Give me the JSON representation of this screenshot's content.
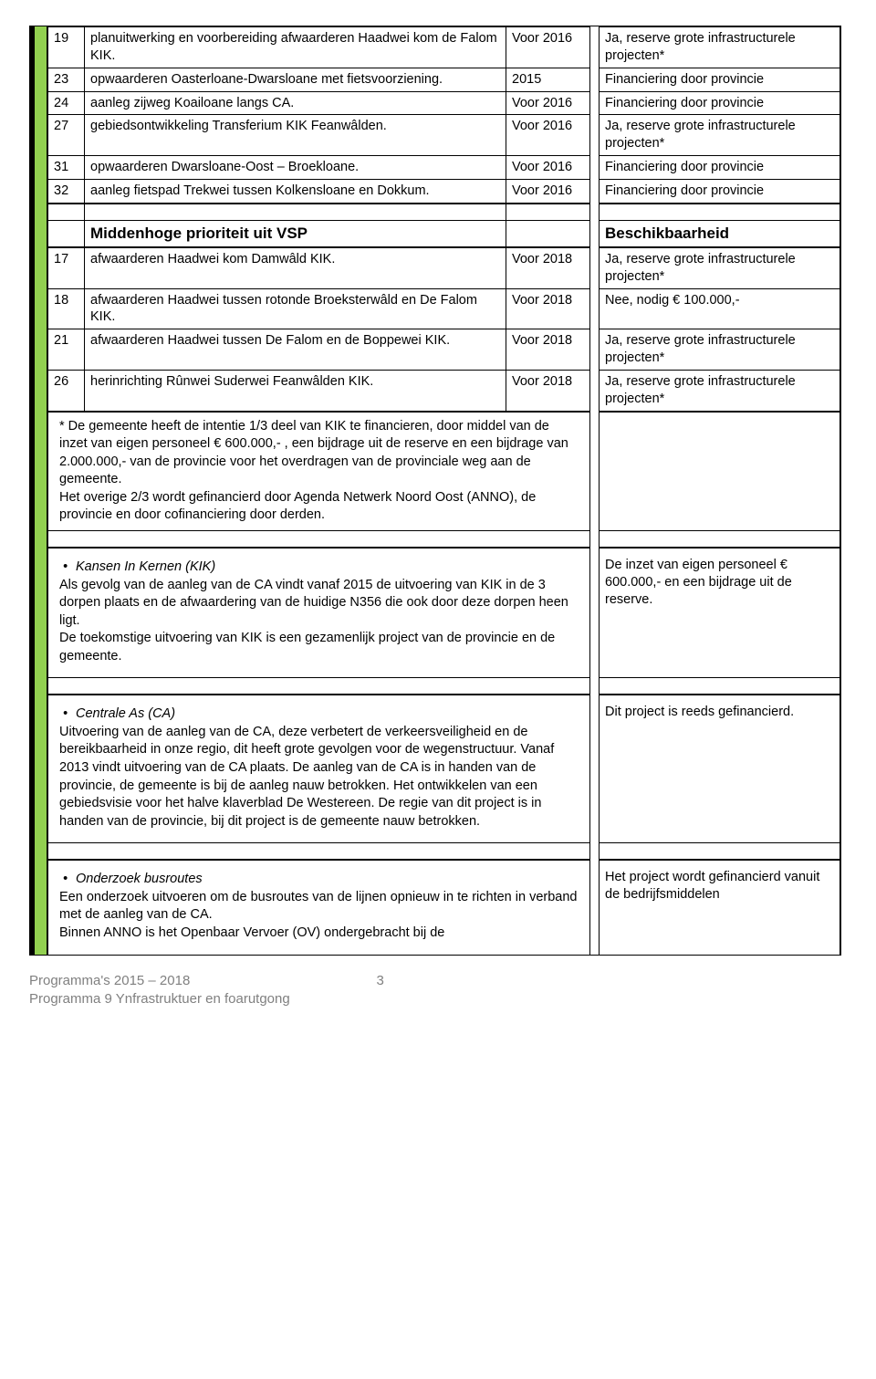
{
  "table1": {
    "rows": [
      {
        "num": "19",
        "desc": "planuitwerking en voorbereiding afwaarderen Haadwei kom de Falom KIK.",
        "year": "Voor 2016",
        "status": "Ja, reserve grote infrastructurele projecten*"
      },
      {
        "num": "23",
        "desc": "opwaarderen Oasterloane-Dwarsloane met fietsvoorziening.",
        "year": "2015",
        "status": "Financiering door provincie"
      },
      {
        "num": "24",
        "desc": "aanleg zijweg Koailoane langs CA.",
        "year": "Voor 2016",
        "status": "Financiering door provincie"
      },
      {
        "num": "27",
        "desc": "gebiedsontwikkeling Transferium KIK Feanwâlden.",
        "year": "Voor 2016",
        "status": "Ja, reserve grote infrastructurele projecten*"
      },
      {
        "num": "31",
        "desc": "opwaarderen Dwarsloane-Oost – Broekloane.",
        "year": "Voor 2016",
        "status": "Financiering door provincie"
      },
      {
        "num": "32",
        "desc": "aanleg fietspad Trekwei tussen Kolkensloane en Dokkum.",
        "year": "Voor 2016",
        "status": "Financiering door provincie"
      }
    ]
  },
  "section2": {
    "left": "Middenhoge prioriteit uit VSP",
    "right": "Beschikbaarheid"
  },
  "table2": {
    "rows": [
      {
        "num": "17",
        "desc": "afwaarderen Haadwei kom Damwâld KIK.",
        "year": "Voor 2018",
        "status": "Ja, reserve grote infrastructurele projecten*"
      },
      {
        "num": "18",
        "desc": "afwaarderen Haadwei tussen rotonde Broeksterwâld en De Falom KIK.",
        "year": "Voor 2018",
        "status": "Nee, nodig € 100.000,-"
      },
      {
        "num": "21",
        "desc": "afwaarderen Haadwei tussen De Falom en de Boppewei KIK.",
        "year": "Voor 2018",
        "status": "Ja, reserve grote infrastructurele projecten*"
      },
      {
        "num": "26",
        "desc": "herinrichting Rûnwei Suderwei Feanwâlden KIK.",
        "year": "Voor 2018",
        "status": "Ja, reserve grote infrastructurele projecten*"
      }
    ]
  },
  "note": "* De gemeente heeft de intentie 1/3 deel van KIK te financieren, door middel van de inzet van eigen personeel € 600.000,- , een bijdrage uit de reserve en een bijdrage van 2.000.000,- van de provincie voor het overdragen van de provinciale weg aan de gemeente.\nHet overige 2/3 wordt gefinancierd door Agenda Netwerk Noord Oost (ANNO), de provincie en door cofinanciering door derden.",
  "blocks": [
    {
      "title": "Kansen In Kernen (KIK)",
      "body": "Als gevolg van de aanleg van de CA vindt vanaf 2015 de uitvoering van KIK in de 3 dorpen plaats en de afwaardering van de huidige N356 die ook door deze dorpen heen ligt.\nDe toekomstige uitvoering van KIK is een gezamenlijk project van de provincie en de gemeente.",
      "right": "De inzet van eigen personeel € 600.000,- en een bijdrage uit de reserve."
    },
    {
      "title": "Centrale As (CA)",
      "body": "Uitvoering van de aanleg van de CA, deze verbetert de verkeersveiligheid en de bereikbaarheid in onze regio, dit heeft grote gevolgen voor de wegenstructuur. Vanaf 2013 vindt uitvoering van de CA plaats. De aanleg van de CA is in handen van de provincie, de gemeente is bij de aanleg nauw betrokken. Het ontwikkelen van een gebiedsvisie voor het halve klaverblad De Westereen. De regie van dit project is in handen van de provincie, bij dit project is de gemeente nauw betrokken.",
      "right": "Dit project is reeds gefinancierd."
    },
    {
      "title": "Onderzoek busroutes",
      "body": "Een onderzoek uitvoeren om de busroutes van de lijnen opnieuw in te richten in verband met de aanleg van de CA.\nBinnen ANNO is het Openbaar Vervoer (OV) ondergebracht bij de",
      "right": "Het project wordt gefinancierd vanuit de bedrijfsmiddelen"
    }
  ],
  "footer": {
    "line1": "Programma's 2015 – 2018",
    "pagenum": "3",
    "line2": "Programma 9 Ynfrastruktuer en foarutgong"
  },
  "colors": {
    "green": "#92d050",
    "grey": "#808080"
  }
}
